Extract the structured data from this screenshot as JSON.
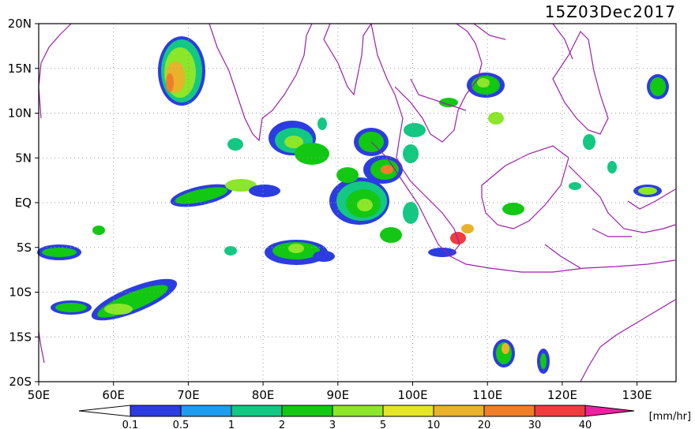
{
  "title": "15Z03Dec2017",
  "lat_labels": [
    "20N",
    "15N",
    "10N",
    "5N",
    "EQ",
    "5S",
    "10S",
    "15S",
    "20S"
  ],
  "lon_labels": [
    "50E",
    "60E",
    "70E",
    "80E",
    "90E",
    "100E",
    "110E",
    "120E",
    "130E"
  ],
  "colorbar": {
    "unit": "[mm/hr]",
    "ticks": [
      "0.1",
      "0.5",
      "1",
      "2",
      "3",
      "5",
      "10",
      "20",
      "30",
      "40"
    ],
    "colors": [
      "#2b3de0",
      "#1e9cf0",
      "#12c882",
      "#12c812",
      "#8ce62a",
      "#e6e628",
      "#e8b22a",
      "#f07e28",
      "#f03c3c",
      "#f01ea0"
    ],
    "under_color": "#ffffff",
    "over_color": "#f01ea0"
  },
  "colors": {
    "coastline": "#9b1fa8",
    "grid": "#9a9a9a",
    "frame": "#000000"
  }
}
